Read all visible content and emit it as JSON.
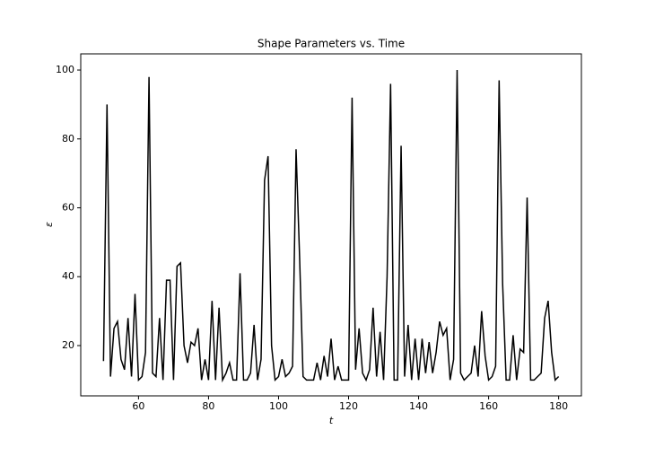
{
  "chart_data": {
    "type": "line",
    "title": "Shape Parameters vs. Time",
    "x_label": "t",
    "y_label": "ε",
    "x": [
      50,
      51,
      52,
      53,
      54,
      55,
      56,
      57,
      58,
      59,
      60,
      61,
      62,
      63,
      64,
      65,
      66,
      67,
      68,
      69,
      70,
      71,
      72,
      73,
      74,
      75,
      76,
      77,
      78,
      79,
      80,
      81,
      82,
      83,
      84,
      85,
      86,
      87,
      88,
      89,
      90,
      91,
      92,
      93,
      94,
      95,
      96,
      97,
      98,
      99,
      100,
      101,
      102,
      103,
      104,
      105,
      106,
      107,
      108,
      109,
      110,
      111,
      112,
      113,
      114,
      115,
      116,
      117,
      118,
      119,
      120,
      121,
      122,
      123,
      124,
      125,
      126,
      127,
      128,
      129,
      130,
      131,
      132,
      133,
      134,
      135,
      136,
      137,
      138,
      139,
      140,
      141,
      142,
      143,
      144,
      145,
      146,
      147,
      148,
      149,
      150,
      151,
      152,
      153,
      154,
      155,
      156,
      157,
      158,
      159,
      160,
      161,
      162,
      163,
      164,
      165,
      166,
      167,
      168,
      169,
      170,
      171,
      172,
      173,
      174,
      175,
      176,
      177,
      178,
      179,
      180
    ],
    "series": [
      {
        "name": "ε",
        "color": "#000000",
        "values": [
          15.5,
          90,
          11,
          25,
          27,
          16,
          13,
          28,
          11,
          35,
          10,
          11,
          18,
          98,
          12,
          11,
          28,
          10,
          39,
          39,
          10,
          43,
          44,
          20,
          15,
          21,
          20,
          25,
          10,
          16,
          10,
          33,
          10,
          31,
          10,
          12,
          15,
          10,
          10,
          41,
          10,
          10,
          12,
          26,
          10,
          16,
          68,
          75,
          20,
          10,
          11,
          16,
          11,
          12,
          14,
          77,
          46,
          11,
          10,
          10,
          10,
          15,
          10,
          17,
          11,
          22,
          10,
          14,
          10,
          10,
          10,
          92,
          13,
          25,
          12,
          10,
          13,
          31,
          11,
          24,
          10,
          40,
          96,
          10,
          10,
          78,
          11,
          26,
          10,
          22,
          10,
          22,
          12,
          21,
          12,
          18,
          27,
          23,
          25,
          10,
          16,
          100,
          12,
          10,
          11,
          12,
          20,
          11,
          30,
          17,
          10,
          11,
          14,
          97,
          38,
          10,
          10,
          23,
          10,
          19,
          18,
          63,
          10,
          10,
          11,
          12,
          28,
          33,
          18,
          10,
          11
        ]
      }
    ],
    "xlim": [
      43.5,
      186.5
    ],
    "ylim": [
      5.4,
      104.7
    ],
    "xticks": [
      60,
      80,
      100,
      120,
      140,
      160,
      180
    ],
    "yticks": [
      20,
      40,
      60,
      80,
      100
    ]
  }
}
